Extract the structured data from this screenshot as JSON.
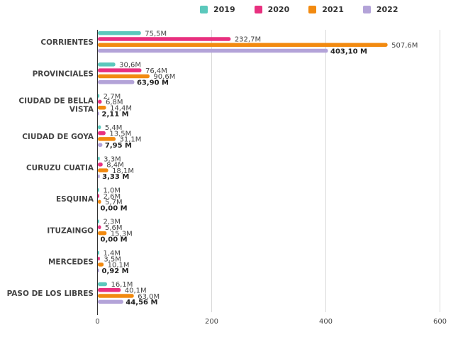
{
  "chart_data": {
    "type": "bar",
    "orientation": "horizontal",
    "title": "",
    "xlabel": "",
    "ylabel": "",
    "xlim": [
      0,
      600
    ],
    "x_ticks": [
      "0",
      "200",
      "400",
      "600"
    ],
    "grid": true,
    "legend_position": "top-center",
    "categories": [
      "CORRIENTES",
      "PROVINCIALES",
      "CIUDAD DE BELLA VISTA",
      "CIUDAD DE GOYA",
      "CURUZU CUATIA",
      "ESQUINA",
      "ITUZAINGO",
      "MERCEDES",
      "PASO DE LOS LIBRES"
    ],
    "category_lines": [
      [
        "CORRIENTES"
      ],
      [
        "PROVINCIALES"
      ],
      [
        "CIUDAD DE BELLA",
        "VISTA"
      ],
      [
        "CIUDAD DE GOYA"
      ],
      [
        "CURUZU CUATIA"
      ],
      [
        "ESQUINA"
      ],
      [
        "ITUZAINGO"
      ],
      [
        "MERCEDES"
      ],
      [
        "PASO DE LOS LIBRES"
      ]
    ],
    "series": [
      {
        "name": "2019",
        "color": "#5bc8bc",
        "values": [
          75.5,
          30.6,
          2.7,
          5.4,
          3.3,
          1.0,
          2.3,
          1.4,
          16.1
        ],
        "labels": [
          "75,5M",
          "30,6M",
          "2,7M",
          "5,4M",
          "3,3M",
          "1,0M",
          "2,3M",
          "1,4M",
          "16,1M"
        ]
      },
      {
        "name": "2020",
        "color": "#e8307f",
        "values": [
          232.7,
          76.4,
          6.8,
          13.5,
          8.4,
          2.6,
          5.6,
          3.5,
          40.1
        ],
        "labels": [
          "232,7M",
          "76,4M",
          "6,8M",
          "13,5M",
          "8,4M",
          "2,6M",
          "5,6M",
          "3,5M",
          "40,1M"
        ]
      },
      {
        "name": "2021",
        "color": "#f28a10",
        "values": [
          507.6,
          90.6,
          14.4,
          31.1,
          18.1,
          5.7,
          15.3,
          10.1,
          63.0
        ],
        "labels": [
          "507,6M",
          "90,6M",
          "14,4M",
          "31,1M",
          "18,1M",
          "5,7M",
          "15,3M",
          "10,1M",
          "63,0M"
        ]
      },
      {
        "name": "2022",
        "color": "#b3a3d8",
        "values": [
          403.1,
          63.9,
          2.11,
          7.95,
          3.33,
          0.0,
          0.0,
          0.92,
          44.56
        ],
        "labels": [
          "403,10 M",
          "63,90 M",
          "2,11 M",
          "7,95 M",
          "3,33 M",
          "0,00 M",
          "0,00 M",
          "0,92 M",
          "44,56 M"
        ]
      }
    ]
  }
}
